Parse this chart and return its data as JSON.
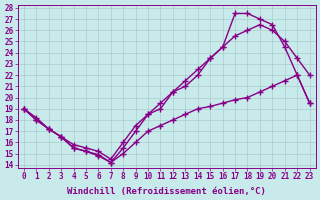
{
  "xlabel": "Windchill (Refroidissement éolien,°C)",
  "ylabel": "",
  "xlim": [
    -0.5,
    23.5
  ],
  "ylim": [
    13.7,
    28.3
  ],
  "xticks": [
    0,
    1,
    2,
    3,
    4,
    5,
    6,
    7,
    8,
    9,
    10,
    11,
    12,
    13,
    14,
    15,
    16,
    17,
    18,
    19,
    20,
    21,
    22,
    23
  ],
  "yticks": [
    14,
    15,
    16,
    17,
    18,
    19,
    20,
    21,
    22,
    23,
    24,
    25,
    26,
    27,
    28
  ],
  "bg_color": "#c8eaea",
  "grid_color": "#aacccc",
  "line_color": "#880088",
  "curve1_x": [
    0,
    1,
    2,
    3,
    4,
    5,
    6,
    7,
    8,
    9,
    10,
    11,
    12,
    13,
    14,
    15,
    16,
    17,
    18,
    19,
    20,
    21,
    22,
    23
  ],
  "curve1_y": [
    19.0,
    18.0,
    17.2,
    16.5,
    15.5,
    15.2,
    14.8,
    14.2,
    15.5,
    17.0,
    18.5,
    19.0,
    20.5,
    21.0,
    22.0,
    23.5,
    24.5,
    27.5,
    27.5,
    27.0,
    26.5,
    24.5,
    22.0,
    19.5
  ],
  "curve2_x": [
    0,
    1,
    2,
    3,
    4,
    5,
    6,
    7,
    8,
    9,
    10,
    11,
    12,
    13,
    14,
    15,
    16,
    17,
    18,
    19,
    20,
    21,
    22,
    23
  ],
  "curve2_y": [
    19.0,
    18.0,
    17.2,
    16.5,
    15.8,
    15.5,
    15.2,
    14.5,
    16.0,
    17.5,
    18.5,
    19.5,
    20.5,
    21.5,
    22.5,
    23.5,
    24.5,
    25.5,
    26.0,
    26.5,
    26.0,
    25.0,
    23.5,
    22.0
  ],
  "curve3_x": [
    0,
    1,
    2,
    3,
    4,
    5,
    6,
    7,
    8,
    9,
    10,
    11,
    12,
    13,
    14,
    15,
    16,
    17,
    18,
    19,
    20,
    21,
    22,
    23
  ],
  "curve3_y": [
    19.0,
    18.2,
    17.2,
    16.5,
    15.5,
    15.2,
    14.9,
    14.2,
    15.0,
    16.0,
    17.0,
    17.5,
    18.0,
    18.5,
    19.0,
    19.2,
    19.5,
    19.8,
    20.0,
    20.5,
    21.0,
    21.5,
    22.0,
    19.5
  ],
  "marker": "+",
  "markersize": 4,
  "linewidth": 1.0,
  "tick_fontsize": 5.5,
  "xlabel_fontsize": 6.5
}
